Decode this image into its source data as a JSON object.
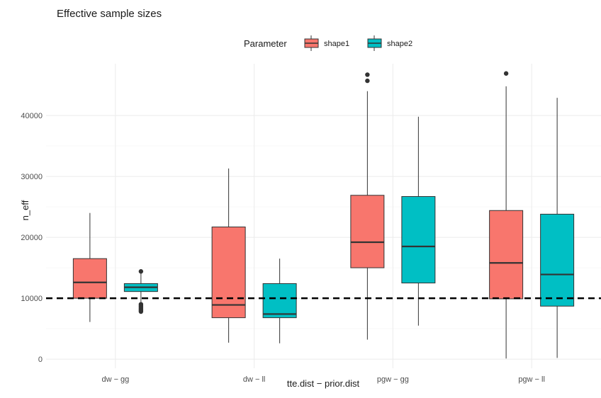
{
  "chart_data": {
    "type": "boxplot",
    "title": "Effective sample sizes",
    "xlabel": "tte.dist − prior.dist",
    "ylabel": "n_eff",
    "ylim": [
      -1500,
      48500
    ],
    "yticks": [
      0,
      10000,
      20000,
      30000,
      40000
    ],
    "ytick_labels": [
      "0",
      "10000",
      "20000",
      "30000",
      "40000"
    ],
    "categories": [
      "dw − gg",
      "dw − ll",
      "pgw − gg",
      "pgw − ll"
    ],
    "reference_line": {
      "y": 10000,
      "style": "dashed",
      "color": "#000000"
    },
    "grid": true,
    "legend": {
      "title": "Parameter",
      "position": "top"
    },
    "series": [
      {
        "name": "shape1",
        "color": "#F8766D",
        "boxes": [
          {
            "q1": 10000,
            "median": 12600,
            "q3": 16500,
            "whisker_low": 6100,
            "whisker_high": 24000,
            "outliers": []
          },
          {
            "q1": 6800,
            "median": 8900,
            "q3": 21700,
            "whisker_low": 2700,
            "whisker_high": 31300,
            "outliers": []
          },
          {
            "q1": 15000,
            "median": 19200,
            "q3": 26900,
            "whisker_low": 3200,
            "whisker_high": 44000,
            "outliers": [
              45700,
              46700
            ]
          },
          {
            "q1": 9900,
            "median": 15800,
            "q3": 24400,
            "whisker_low": 100,
            "whisker_high": 44800,
            "outliers": [
              46900
            ]
          }
        ]
      },
      {
        "name": "shape2",
        "color": "#00BFC4",
        "boxes": [
          {
            "q1": 11100,
            "median": 11800,
            "q3": 12400,
            "whisker_low": 9200,
            "whisker_high": 14300,
            "outliers": [
              14400,
              9000,
              8800,
              8600,
              8400,
              8200,
              8000,
              7800
            ]
          },
          {
            "q1": 6800,
            "median": 7400,
            "q3": 12400,
            "whisker_low": 2600,
            "whisker_high": 16500,
            "outliers": []
          },
          {
            "q1": 12500,
            "median": 18500,
            "q3": 26700,
            "whisker_low": 5500,
            "whisker_high": 39800,
            "outliers": []
          },
          {
            "q1": 8700,
            "median": 13900,
            "q3": 23800,
            "whisker_low": 200,
            "whisker_high": 42900,
            "outliers": []
          }
        ]
      }
    ]
  }
}
